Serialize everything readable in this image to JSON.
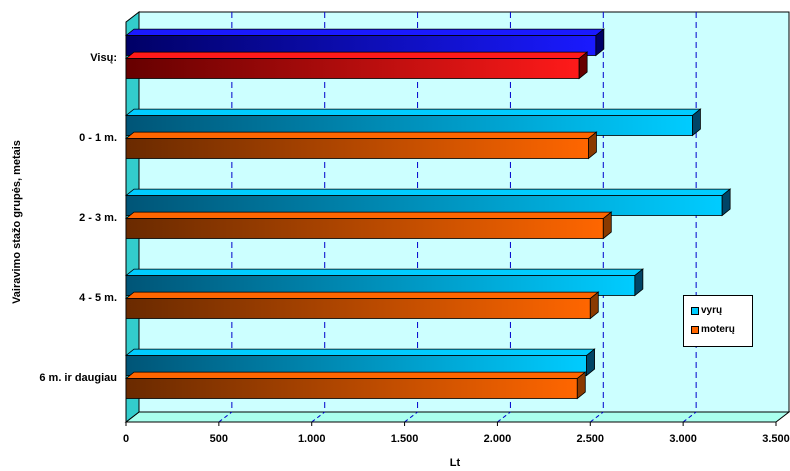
{
  "chart_data": {
    "type": "bar",
    "orientation": "horizontal",
    "style": "3d",
    "xlabel": "Lt",
    "ylabel": "Vairavimo stažo grupės, metais",
    "xlim": [
      0,
      3500
    ],
    "xticks": [
      "0",
      "500",
      "1.000",
      "1.500",
      "2.000",
      "2.500",
      "3.000",
      "3.500"
    ],
    "categories": [
      "Visų:",
      "0 - 1 m.",
      "2 - 3 m.",
      "4 - 5 m.",
      "6 m. ir daugiau"
    ],
    "series": [
      {
        "name": "vyrų",
        "values": [
          2530,
          3050,
          3210,
          2740,
          2480
        ]
      },
      {
        "name": "moterų",
        "values": [
          2440,
          2490,
          2570,
          2500,
          2430
        ]
      }
    ],
    "grid": "vertical-dashed",
    "legend_position": "right"
  },
  "colors": {
    "wall": "#ccffff",
    "floor": "#aaffee",
    "side_wall": "#33cccc",
    "grid": "#0000cc",
    "men_bar_total_dark": "#000066",
    "men_bar_total_light": "#1a1aff",
    "women_bar_total_dark": "#660000",
    "women_bar_total_light": "#ff1a1a",
    "men_bar_dark": "#005577",
    "men_bar_light": "#00ccff",
    "women_bar_dark": "#6a2a00",
    "women_bar_light": "#ff6600"
  }
}
